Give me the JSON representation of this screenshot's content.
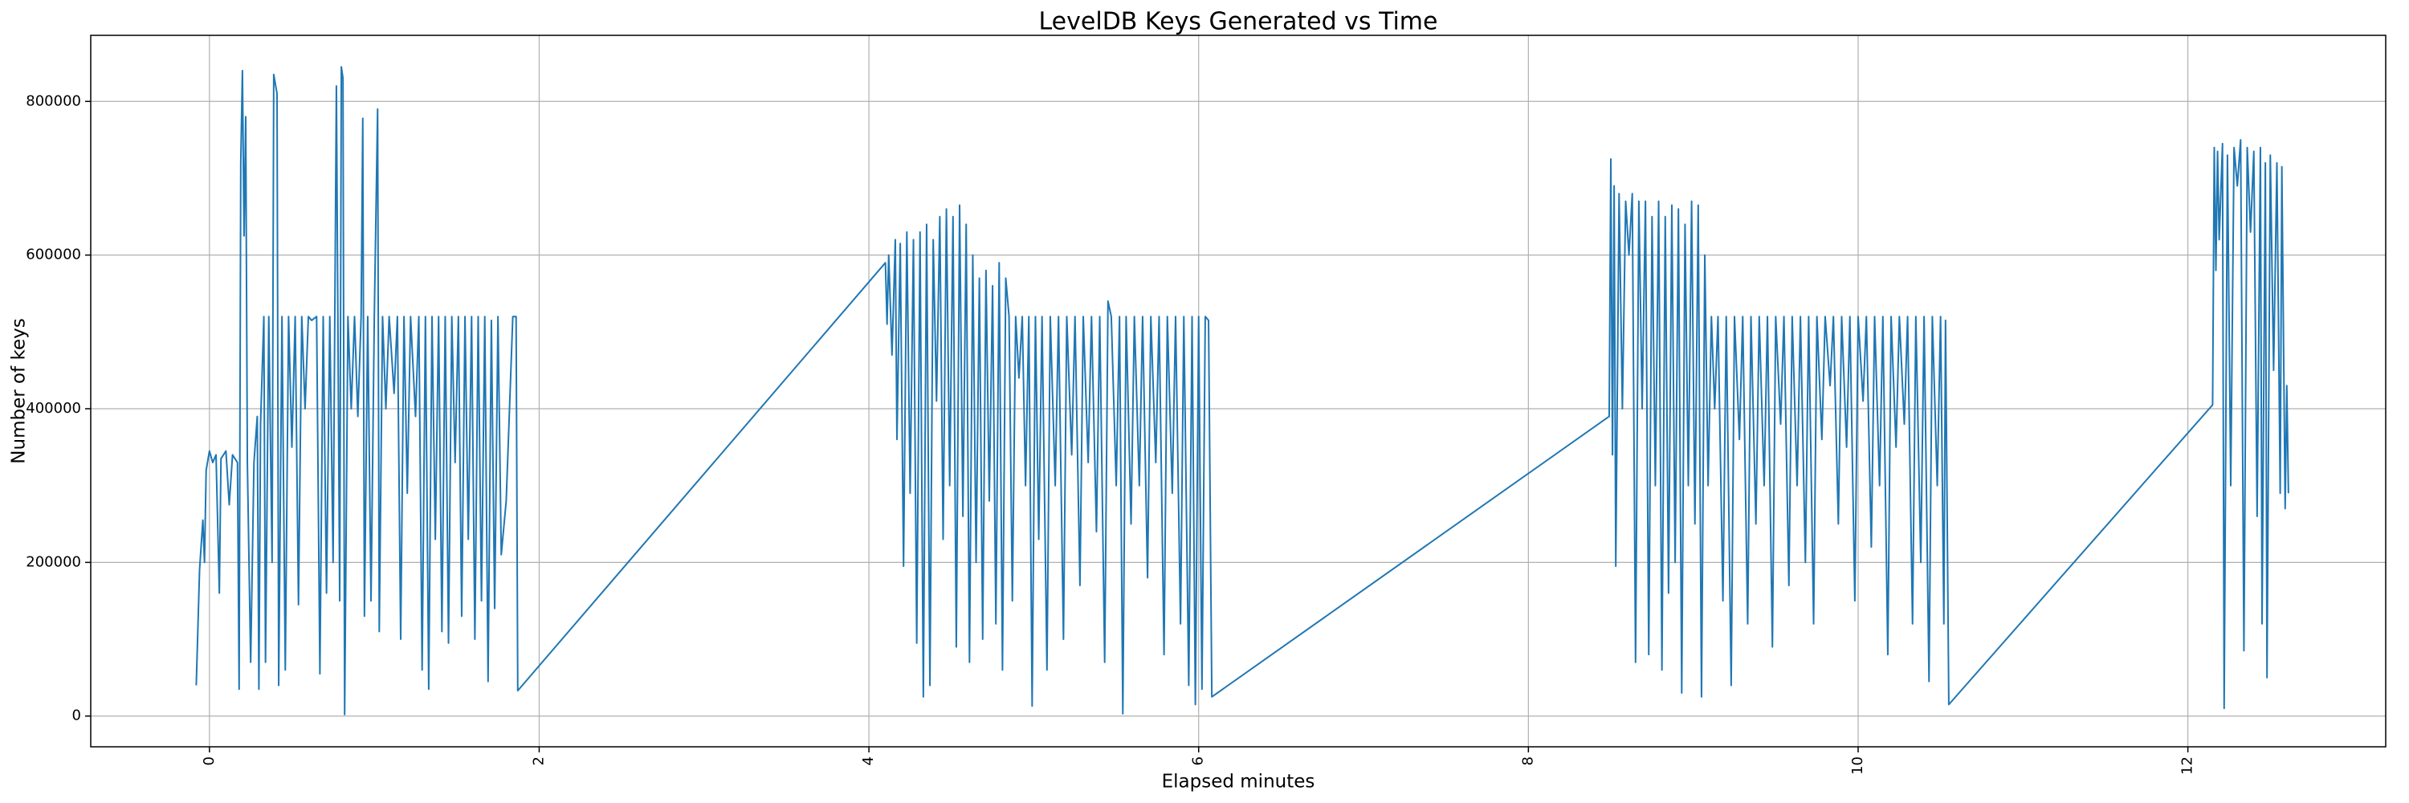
{
  "chart_data": {
    "type": "line",
    "title": "LevelDB Keys Generated vs Time",
    "x_label": "Elapsed minutes",
    "y_label": "Number of keys",
    "color": "#1f77b4",
    "grid": true,
    "xlim": [
      -0.72,
      13.2
    ],
    "ylim": [
      -40000,
      886000
    ],
    "xticks": [
      0,
      2,
      4,
      6,
      8,
      10,
      12
    ],
    "yticks": [
      0,
      200000,
      400000,
      600000,
      800000
    ],
    "x": [
      -0.08,
      -0.06,
      -0.04,
      -0.03,
      -0.02,
      0.0,
      0.02,
      0.04,
      0.06,
      0.07,
      0.1,
      0.12,
      0.14,
      0.17,
      0.18,
      0.19,
      0.2,
      0.21,
      0.22,
      0.23,
      0.25,
      0.27,
      0.29,
      0.3,
      0.31,
      0.33,
      0.34,
      0.36,
      0.38,
      0.39,
      0.41,
      0.42,
      0.44,
      0.46,
      0.48,
      0.5,
      0.52,
      0.54,
      0.56,
      0.58,
      0.6,
      0.62,
      0.65,
      0.67,
      0.69,
      0.71,
      0.73,
      0.75,
      0.77,
      0.79,
      0.8,
      0.81,
      0.82,
      0.84,
      0.86,
      0.88,
      0.9,
      0.92,
      0.93,
      0.94,
      0.96,
      0.98,
      1.0,
      1.02,
      1.03,
      1.05,
      1.07,
      1.09,
      1.12,
      1.14,
      1.16,
      1.18,
      1.2,
      1.22,
      1.25,
      1.27,
      1.29,
      1.31,
      1.33,
      1.35,
      1.37,
      1.39,
      1.41,
      1.43,
      1.45,
      1.47,
      1.49,
      1.51,
      1.53,
      1.55,
      1.57,
      1.59,
      1.61,
      1.63,
      1.65,
      1.67,
      1.69,
      1.71,
      1.73,
      1.75,
      1.77,
      1.8,
      1.84,
      1.86,
      1.87,
      4.1,
      4.11,
      4.12,
      4.14,
      4.16,
      4.17,
      4.19,
      4.21,
      4.23,
      4.25,
      4.27,
      4.29,
      4.31,
      4.33,
      4.35,
      4.37,
      4.39,
      4.41,
      4.43,
      4.45,
      4.47,
      4.49,
      4.51,
      4.53,
      4.55,
      4.57,
      4.59,
      4.61,
      4.63,
      4.65,
      4.67,
      4.69,
      4.71,
      4.73,
      4.75,
      4.77,
      4.79,
      4.81,
      4.83,
      4.85,
      4.87,
      4.89,
      4.91,
      4.93,
      4.95,
      4.97,
      4.99,
      5.01,
      5.03,
      5.05,
      5.08,
      5.1,
      5.13,
      5.15,
      5.18,
      5.2,
      5.23,
      5.25,
      5.28,
      5.3,
      5.33,
      5.35,
      5.38,
      5.4,
      5.43,
      5.45,
      5.47,
      5.5,
      5.52,
      5.54,
      5.56,
      5.59,
      5.61,
      5.64,
      5.66,
      5.69,
      5.71,
      5.74,
      5.76,
      5.79,
      5.81,
      5.84,
      5.86,
      5.89,
      5.91,
      5.94,
      5.96,
      5.98,
      6.0,
      6.02,
      6.04,
      6.06,
      6.08,
      8.49,
      8.5,
      8.51,
      8.52,
      8.53,
      8.55,
      8.57,
      8.59,
      8.61,
      8.63,
      8.65,
      8.67,
      8.69,
      8.71,
      8.73,
      8.75,
      8.77,
      8.79,
      8.81,
      8.83,
      8.85,
      8.87,
      8.89,
      8.91,
      8.93,
      8.95,
      8.97,
      8.99,
      9.01,
      9.03,
      9.05,
      9.07,
      9.09,
      9.11,
      9.13,
      9.15,
      9.18,
      9.2,
      9.23,
      9.25,
      9.28,
      9.3,
      9.33,
      9.35,
      9.38,
      9.4,
      9.43,
      9.45,
      9.48,
      9.5,
      9.53,
      9.55,
      9.58,
      9.6,
      9.63,
      9.65,
      9.68,
      9.7,
      9.73,
      9.75,
      9.78,
      9.8,
      9.83,
      9.85,
      9.88,
      9.9,
      9.93,
      9.95,
      9.98,
      10.0,
      10.03,
      10.05,
      10.08,
      10.1,
      10.13,
      10.15,
      10.18,
      10.2,
      10.23,
      10.25,
      10.28,
      10.3,
      10.33,
      10.35,
      10.38,
      10.4,
      10.43,
      10.45,
      10.48,
      10.5,
      10.52,
      10.53,
      10.55,
      12.15,
      12.16,
      12.17,
      12.18,
      12.19,
      12.21,
      12.22,
      12.24,
      12.26,
      12.28,
      12.3,
      12.32,
      12.34,
      12.36,
      12.38,
      12.4,
      12.42,
      12.44,
      12.45,
      12.47,
      12.48,
      12.5,
      12.52,
      12.54,
      12.56,
      12.57,
      12.59,
      12.6,
      12.61
    ],
    "values": [
      40000,
      190000,
      255000,
      200000,
      320000,
      345000,
      330000,
      340000,
      160000,
      335000,
      345000,
      275000,
      340000,
      330000,
      35000,
      720000,
      840000,
      625000,
      780000,
      330000,
      70000,
      330000,
      390000,
      35000,
      380000,
      520000,
      70000,
      520000,
      200000,
      835000,
      810000,
      40000,
      520000,
      60000,
      520000,
      350000,
      520000,
      145000,
      520000,
      400000,
      520000,
      515000,
      520000,
      55000,
      520000,
      160000,
      520000,
      200000,
      820000,
      150000,
      845000,
      830000,
      2000,
      520000,
      400000,
      520000,
      390000,
      520000,
      778000,
      130000,
      520000,
      150000,
      520000,
      790000,
      110000,
      520000,
      400000,
      520000,
      420000,
      520000,
      100000,
      520000,
      290000,
      520000,
      390000,
      520000,
      60000,
      520000,
      35000,
      520000,
      230000,
      520000,
      110000,
      520000,
      95000,
      520000,
      330000,
      520000,
      130000,
      520000,
      230000,
      520000,
      100000,
      520000,
      150000,
      520000,
      45000,
      515000,
      140000,
      520000,
      210000,
      280000,
      520000,
      520000,
      33000,
      590000,
      510000,
      600000,
      470000,
      620000,
      360000,
      615000,
      195000,
      630000,
      290000,
      620000,
      95000,
      630000,
      25000,
      640000,
      40000,
      620000,
      410000,
      650000,
      230000,
      660000,
      300000,
      650000,
      90000,
      665000,
      260000,
      640000,
      70000,
      600000,
      200000,
      570000,
      100000,
      580000,
      280000,
      560000,
      120000,
      590000,
      60000,
      570000,
      520000,
      150000,
      520000,
      440000,
      520000,
      300000,
      520000,
      13000,
      520000,
      230000,
      520000,
      60000,
      520000,
      300000,
      520000,
      100000,
      520000,
      340000,
      520000,
      170000,
      520000,
      330000,
      520000,
      240000,
      520000,
      70000,
      540000,
      520000,
      300000,
      520000,
      3000,
      520000,
      250000,
      520000,
      300000,
      520000,
      180000,
      520000,
      330000,
      520000,
      80000,
      520000,
      290000,
      520000,
      120000,
      520000,
      40000,
      520000,
      15000,
      520000,
      35000,
      520000,
      515000,
      25000,
      390000,
      725000,
      340000,
      690000,
      195000,
      680000,
      400000,
      670000,
      600000,
      680000,
      70000,
      670000,
      400000,
      670000,
      80000,
      650000,
      300000,
      670000,
      60000,
      650000,
      160000,
      665000,
      200000,
      660000,
      30000,
      640000,
      300000,
      670000,
      250000,
      665000,
      25000,
      600000,
      300000,
      520000,
      400000,
      520000,
      150000,
      520000,
      40000,
      520000,
      360000,
      520000,
      120000,
      520000,
      250000,
      520000,
      300000,
      520000,
      90000,
      520000,
      380000,
      520000,
      170000,
      520000,
      300000,
      520000,
      200000,
      520000,
      120000,
      520000,
      360000,
      520000,
      430000,
      520000,
      250000,
      520000,
      350000,
      520000,
      150000,
      520000,
      410000,
      520000,
      220000,
      520000,
      300000,
      520000,
      80000,
      520000,
      350000,
      520000,
      380000,
      520000,
      120000,
      520000,
      200000,
      520000,
      45000,
      520000,
      300000,
      520000,
      120000,
      515000,
      15000,
      405000,
      740000,
      580000,
      735000,
      620000,
      745000,
      10000,
      730000,
      300000,
      740000,
      690000,
      750000,
      85000,
      740000,
      630000,
      735000,
      260000,
      740000,
      120000,
      720000,
      50000,
      730000,
      450000,
      720000,
      290000,
      715000,
      270000,
      430000,
      290000
    ]
  }
}
